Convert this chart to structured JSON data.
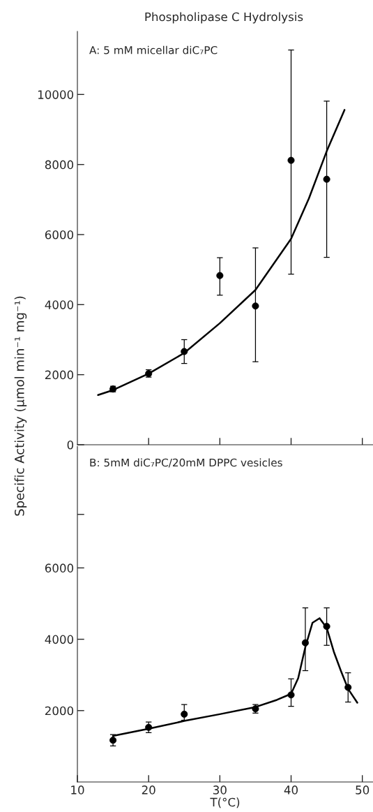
{
  "chart_data": [
    {
      "type": "scatter",
      "title": "Phospholipase C Hydrolysis",
      "ylabel": "Specific Activity (μmol min⁻¹ mg⁻¹)",
      "annotations": [
        "A: 5 mM micellar diC₇PC"
      ],
      "xlim": [
        10,
        51.5
      ],
      "xticks": [
        {
          "value": 20,
          "label": null
        },
        {
          "value": 30,
          "label": null
        },
        {
          "value": 40,
          "label": null
        },
        {
          "value": 50,
          "label": null
        }
      ],
      "ylim": [
        0,
        11800
      ],
      "yticks": [
        0,
        2000,
        4000,
        6000,
        8000,
        10000
      ],
      "tick_labels": "y",
      "grid": false,
      "series": [
        {
          "color": "#000000",
          "marker": "circle",
          "x": [
            15,
            20,
            25,
            30,
            35,
            40,
            45
          ],
          "values": [
            1590,
            2030,
            2660,
            4830,
            3960,
            8120,
            7580
          ],
          "errors": [
            [
              1510,
              1670
            ],
            [
              1930,
              2140
            ],
            [
              2320,
              3000
            ],
            [
              4270,
              5340
            ],
            [
              2370,
              5620
            ],
            [
              4870,
              11270
            ],
            [
              5350,
              9810
            ]
          ]
        },
        {
          "type": "line",
          "color": "#000000",
          "marker": "none",
          "line_style": "solid",
          "x": [
            12.9,
            15,
            20,
            25,
            30,
            35,
            40,
            42.5,
            45,
            47.5
          ],
          "values": [
            1420,
            1560,
            2030,
            2620,
            3470,
            4420,
            5880,
            7030,
            8380,
            9560
          ]
        }
      ]
    },
    {
      "type": "scatter",
      "xlabel": "T(°C)",
      "annotations": [
        "B: 5mM diC₇PC/20mM DPPC vesicles"
      ],
      "xlim": [
        10,
        51.5
      ],
      "xticks": [
        10,
        20,
        30,
        40,
        50
      ],
      "ylim": [
        0,
        9400
      ],
      "yticks": [
        2000,
        4000,
        6000,
        {
          "value": 7500,
          "label": null
        }
      ],
      "grid": false,
      "series": [
        {
          "color": "#000000",
          "marker": "circle",
          "x": [
            15,
            20,
            25,
            35,
            40,
            42,
            45,
            48
          ],
          "values": [
            1170,
            1530,
            1900,
            2050,
            2440,
            3900,
            4360,
            2650
          ],
          "errors": [
            [
              1010,
              1330
            ],
            [
              1380,
              1680
            ],
            [
              1730,
              2170
            ],
            [
              1930,
              2170
            ],
            [
              2120,
              2890
            ],
            [
              3120,
              4880
            ],
            [
              3830,
              4880
            ],
            [
              2240,
              3060
            ]
          ]
        },
        {
          "type": "line",
          "color": "#000000",
          "marker": "none",
          "line_style": "solid",
          "x": [
            15,
            20,
            25,
            30,
            35,
            38,
            40,
            41,
            42,
            43,
            44,
            45,
            46,
            47,
            48,
            49.3
          ],
          "values": [
            1290,
            1490,
            1710,
            1900,
            2100,
            2300,
            2470,
            2910,
            3780,
            4460,
            4590,
            4320,
            3650,
            3110,
            2610,
            2220
          ]
        }
      ]
    }
  ]
}
